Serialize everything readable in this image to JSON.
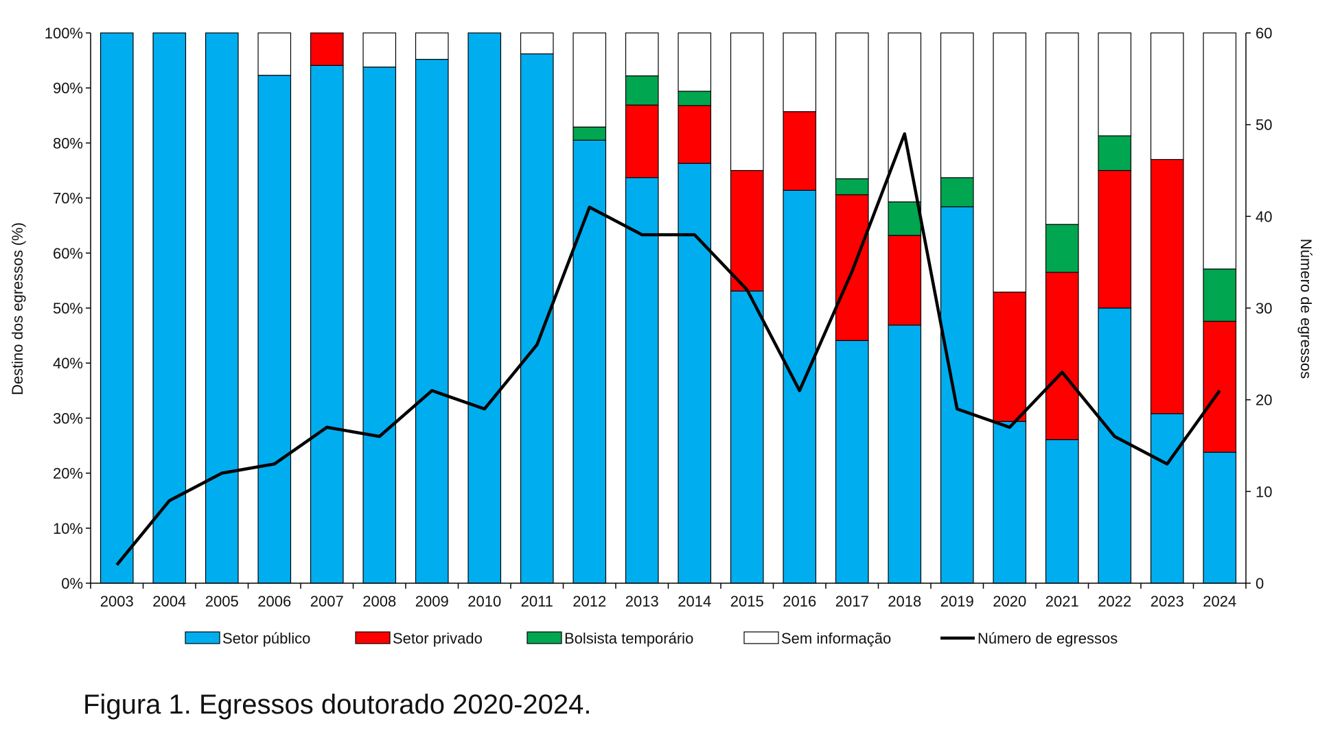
{
  "caption": "Figura 1. Egressos doutorado 2020-2024.",
  "chart_data": {
    "type": "bar",
    "stacked": true,
    "title": "",
    "xlabel": "",
    "ylabel": "Destino dos egressos (%)",
    "y2label": "Número de egressos",
    "ylim": [
      0,
      100
    ],
    "y2lim": [
      0,
      60
    ],
    "yticks": [
      "0%",
      "10%",
      "20%",
      "30%",
      "40%",
      "50%",
      "60%",
      "70%",
      "80%",
      "90%",
      "100%"
    ],
    "y2ticks": [
      "0",
      "10",
      "20",
      "30",
      "40",
      "50",
      "60"
    ],
    "categories": [
      "2003",
      "2004",
      "2005",
      "2006",
      "2007",
      "2008",
      "2009",
      "2010",
      "2011",
      "2012",
      "2013",
      "2014",
      "2015",
      "2016",
      "2017",
      "2018",
      "2019",
      "2020",
      "2021",
      "2022",
      "2023",
      "2024"
    ],
    "series": [
      {
        "name": "Setor público",
        "color": "#00AEEF",
        "values": [
          100,
          100,
          100,
          92.3,
          94.1,
          93.8,
          95.2,
          100,
          96.2,
          80.5,
          73.7,
          76.3,
          53.1,
          71.4,
          44.1,
          46.9,
          68.4,
          29.4,
          26.1,
          50.0,
          30.8,
          23.8
        ]
      },
      {
        "name": "Setor privado",
        "color": "#FF0000",
        "values": [
          0,
          0,
          0,
          0,
          5.9,
          0,
          0,
          0,
          0,
          0,
          13.2,
          10.5,
          21.9,
          14.3,
          26.5,
          16.3,
          0,
          23.5,
          30.4,
          25.0,
          46.2,
          23.8
        ]
      },
      {
        "name": "Bolsista temporário",
        "color": "#00A650",
        "values": [
          0,
          0,
          0,
          0,
          0,
          0,
          0,
          0,
          0,
          2.4,
          5.3,
          2.6,
          0,
          0,
          2.9,
          6.1,
          5.3,
          0,
          8.7,
          6.3,
          0,
          9.5
        ]
      },
      {
        "name": "Sem informação",
        "color": "#FFFFFF",
        "values": [
          0,
          0,
          0,
          7.7,
          0,
          6.2,
          4.8,
          0,
          3.8,
          17.1,
          7.8,
          10.6,
          25.0,
          14.3,
          26.5,
          30.7,
          26.3,
          47.1,
          34.8,
          18.7,
          23.0,
          42.9
        ]
      }
    ],
    "line": {
      "name": "Número de egressos",
      "color": "#000000",
      "axis": "right",
      "values": [
        2,
        9,
        12,
        13,
        17,
        16,
        21,
        19,
        26,
        41,
        38,
        38,
        32,
        21,
        34,
        49,
        19,
        17,
        23,
        16,
        13,
        21
      ]
    },
    "legend": "bottom",
    "grid": false
  }
}
